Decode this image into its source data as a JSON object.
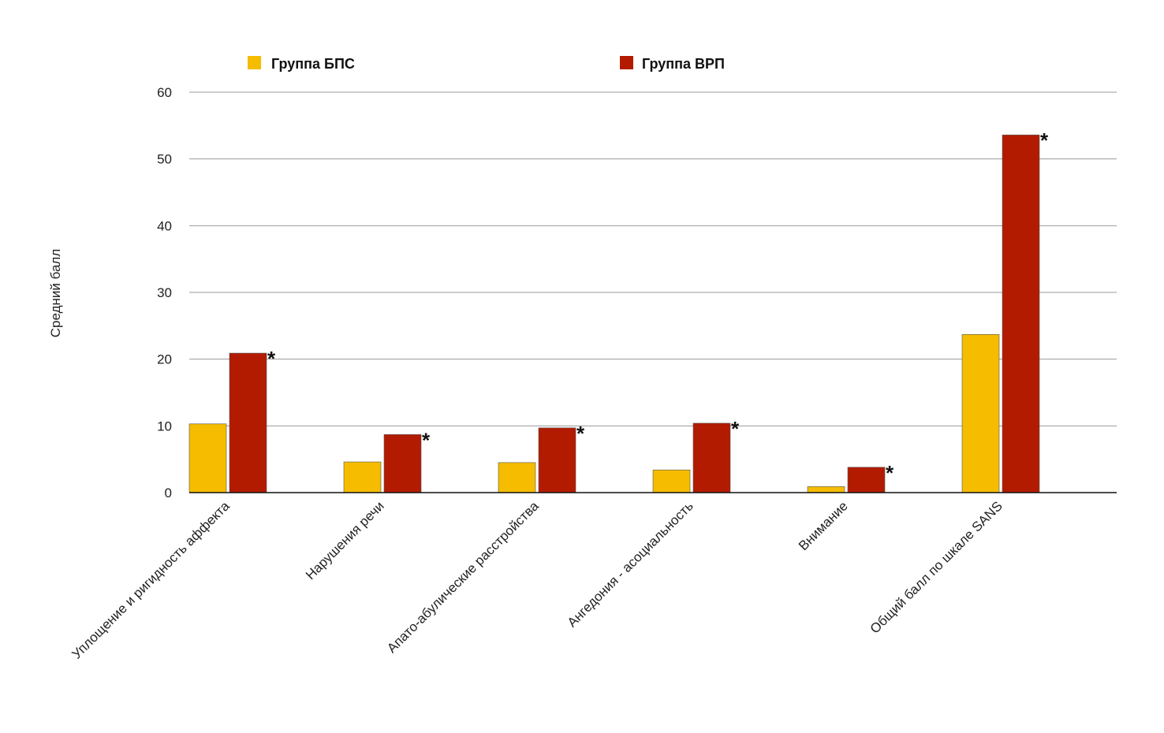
{
  "chart_data": {
    "type": "bar",
    "title": "",
    "xlabel": "",
    "ylabel": "Средний балл",
    "ylim": [
      0,
      60
    ],
    "yticks": [
      0,
      10,
      20,
      30,
      40,
      50,
      60
    ],
    "grid": true,
    "legend_position": "top",
    "categories": [
      "Уплощение и ригидность аффекта",
      "Нарушения речи",
      "Апато-абулические расстройства",
      "Ангедония - асоциальность",
      "Внимание",
      "Общий балл по шкале SANS"
    ],
    "series": [
      {
        "name": "Группа БПС",
        "color": "#F5BC00",
        "values": [
          10.3,
          4.6,
          4.5,
          3.4,
          0.9,
          23.7
        ]
      },
      {
        "name": "Группа ВРП",
        "color": "#B31B00",
        "values": [
          20.9,
          8.7,
          9.7,
          10.4,
          3.8,
          53.6
        ]
      }
    ],
    "annotations": [
      "*",
      "*",
      "*",
      "*",
      "*",
      "*"
    ]
  }
}
